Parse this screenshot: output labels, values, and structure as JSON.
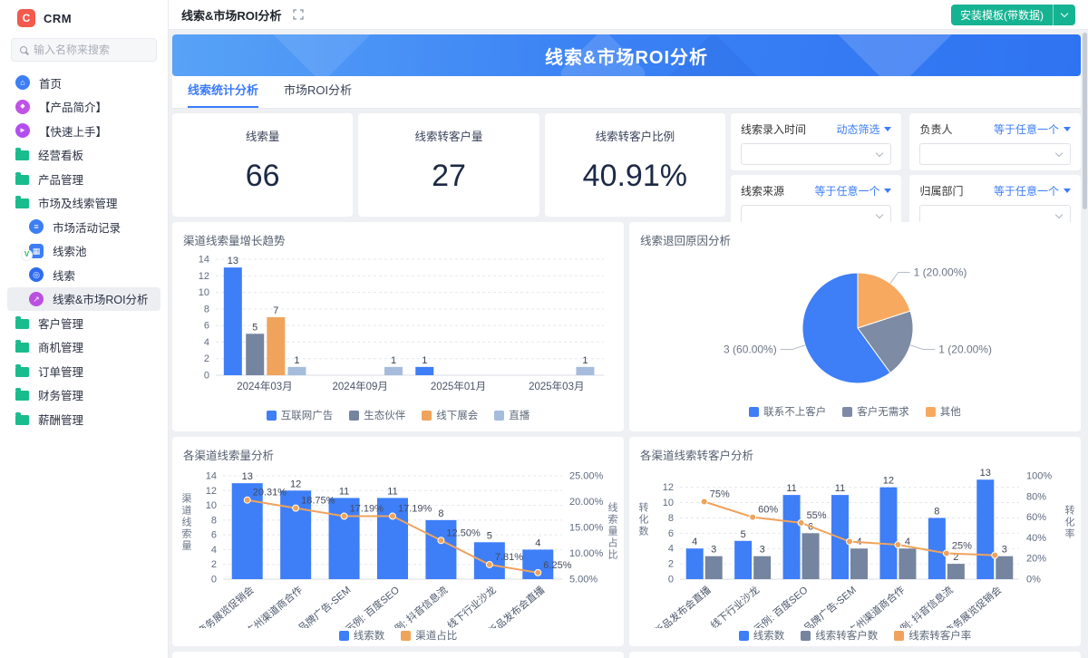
{
  "app": {
    "logo_text": "CRM",
    "search_placeholder": "输入名称来搜索"
  },
  "sidebar": {
    "items": [
      {
        "name": "home",
        "label": "首页",
        "icon": "home-icon",
        "level": 0
      },
      {
        "name": "product-intro",
        "label": "【产品简介】",
        "icon": "tag-icon",
        "level": 0
      },
      {
        "name": "quick-start",
        "label": "【快速上手】",
        "icon": "plane-icon",
        "level": 0
      },
      {
        "name": "business-board",
        "label": "经营看板",
        "icon": "folder-icon",
        "level": 0
      },
      {
        "name": "product-mgmt",
        "label": "产品管理",
        "icon": "folder-icon",
        "level": 0
      },
      {
        "name": "market-lead-mgmt",
        "label": "市场及线索管理",
        "icon": "folder-icon",
        "level": 0
      },
      {
        "name": "market-activity",
        "label": "市场活动记录",
        "icon": "doc-icon",
        "level": 1
      },
      {
        "name": "lead-pool",
        "label": "线索池",
        "icon": "pool-icon",
        "level": 1
      },
      {
        "name": "leads",
        "label": "线索",
        "icon": "lead-icon",
        "level": 1
      },
      {
        "name": "lead-roi",
        "label": "线索&市场ROI分析",
        "icon": "roi-icon",
        "level": 1,
        "active": true
      },
      {
        "name": "customer-mgmt",
        "label": "客户管理",
        "icon": "folder-icon",
        "level": 0
      },
      {
        "name": "opportunity-mgmt",
        "label": "商机管理",
        "icon": "folder-icon",
        "level": 0
      },
      {
        "name": "order-mgmt",
        "label": "订单管理",
        "icon": "folder-icon",
        "level": 0
      },
      {
        "name": "finance-mgmt",
        "label": "财务管理",
        "icon": "folder-icon",
        "level": 0
      },
      {
        "name": "salary-mgmt",
        "label": "薪酬管理",
        "icon": "folder-icon",
        "level": 0
      }
    ]
  },
  "topbar": {
    "title": "线索&市场ROI分析",
    "install_button": "安装模板(带数据)"
  },
  "banner": {
    "title": "线索&市场ROI分析"
  },
  "tabs": [
    {
      "label": "线索统计分析",
      "active": true
    },
    {
      "label": "市场ROI分析",
      "active": false
    }
  ],
  "kpis": [
    {
      "label": "线索量",
      "value": "66"
    },
    {
      "label": "线索转客户量",
      "value": "27"
    },
    {
      "label": "线索转客户比例",
      "value": "40.91%"
    }
  ],
  "filters": [
    {
      "label": "线索录入时间",
      "op": "动态筛选"
    },
    {
      "label": "负责人",
      "op": "等于任意一个"
    },
    {
      "label": "线索来源",
      "op": "等于任意一个"
    },
    {
      "label": "归属部门",
      "op": "等于任意一个"
    }
  ],
  "colors": {
    "accent_blue": "#3E7EF7",
    "slate": "#75849F",
    "light_slate": "#A6BCDC",
    "orange": "#F0A35C",
    "pie_gray": "#7D8BA5",
    "button_green": "#16B392"
  },
  "chart_data": [
    {
      "id": "growth",
      "type": "bar",
      "title": "渠道线索量增长趋势",
      "ylim": [
        0,
        14
      ],
      "yticks": [
        0,
        2,
        4,
        6,
        8,
        10,
        12,
        14
      ],
      "series": [
        {
          "name": "互联网广告",
          "color": "#3E7EF7"
        },
        {
          "name": "生态伙伴",
          "color": "#75849F"
        },
        {
          "name": "线下展会",
          "color": "#F0A35C"
        },
        {
          "name": "直播",
          "color": "#A6BCDC"
        }
      ],
      "bars": [
        {
          "series": 0,
          "value": 13,
          "x": 0.044
        },
        {
          "series": 1,
          "value": 5,
          "x": 0.101
        },
        {
          "series": 2,
          "value": 7,
          "x": 0.155
        },
        {
          "series": 3,
          "value": 1,
          "x": 0.209
        },
        {
          "series": 3,
          "value": 1,
          "x": 0.458
        },
        {
          "series": 0,
          "value": 1,
          "x": 0.538
        },
        {
          "series": 3,
          "value": 1,
          "x": 0.952
        }
      ],
      "x_ticks": [
        {
          "label": "2024年03月",
          "x": 0.126
        },
        {
          "label": "2024年09月",
          "x": 0.372
        },
        {
          "label": "2025年01月",
          "x": 0.625
        },
        {
          "label": "2025年03月",
          "x": 0.878
        }
      ]
    },
    {
      "id": "return-reason",
      "type": "pie",
      "title": "线索退回原因分析",
      "slices": [
        {
          "name": "联系不上客户",
          "value": 3,
          "label": "3 (60.00%)",
          "color": "#3E7EF7"
        },
        {
          "name": "客户无需求",
          "value": 1,
          "label": "1 (20.00%)",
          "color": "#7D8BA5"
        },
        {
          "name": "其他",
          "value": 1,
          "label": "1 (20.00%)",
          "color": "#F6A95F"
        }
      ]
    },
    {
      "id": "channel-leads",
      "type": "combo",
      "title": "各渠道线索量分析",
      "categories": [
        "商务展览促销会",
        "广州渠道商合作",
        "品牌广告-SEM",
        "示例: 百度SEO",
        "示例: 抖音信息流",
        "线下行业沙龙",
        "新品发布会直播"
      ],
      "left_axis": {
        "name": "渠道线索量",
        "max": 14,
        "ticks": [
          0,
          2,
          4,
          6,
          8,
          10,
          12,
          14
        ]
      },
      "right_axis": {
        "name": "线索量占比",
        "lim": [
          5,
          25
        ],
        "ticks": [
          "5.00%",
          "10.00%",
          "15.00%",
          "20.00%",
          "25.00%"
        ]
      },
      "bar_series": [
        {
          "name": "线索数",
          "color": "#3E7EF7",
          "values": [
            13,
            12,
            11,
            11,
            8,
            5,
            4
          ]
        }
      ],
      "line_series": {
        "name": "渠道占比",
        "color": "#F0A35C",
        "values": [
          20.31,
          18.75,
          17.19,
          17.19,
          12.5,
          7.81,
          6.25
        ],
        "labels": [
          "20.31%",
          "18.75%",
          "17.19%",
          "17.19%",
          "12.50%",
          "7.81%",
          "6.25%"
        ]
      }
    },
    {
      "id": "channel-conversion",
      "type": "combo",
      "title": "各渠道线索转客户分析",
      "categories": [
        "新品发布会直播",
        "线下行业沙龙",
        "示例: 百度SEO",
        "品牌广告-SEM",
        "广州渠道商合作",
        "示例: 抖音信息流",
        "商务展览促销会"
      ],
      "left_axis": {
        "name": "转化数",
        "max": 13.5,
        "ticks": [
          0,
          2,
          4,
          6,
          8,
          10,
          12
        ]
      },
      "right_axis": {
        "name": "转化率",
        "lim": [
          0,
          100
        ],
        "ticks": [
          "0%",
          "20%",
          "40%",
          "60%",
          "80%",
          "100%"
        ]
      },
      "bar_series": [
        {
          "name": "线索数",
          "color": "#3E7EF7",
          "values": [
            4,
            5,
            11,
            11,
            12,
            8,
            13
          ]
        },
        {
          "name": "线索转客户数",
          "color": "#75849F",
          "values": [
            3,
            3,
            6,
            4,
            4,
            2,
            3
          ]
        }
      ],
      "line_series": {
        "name": "线索转客户率",
        "color": "#F0A35C",
        "values": [
          75,
          60,
          54.5,
          36.4,
          33.3,
          25,
          23.1
        ],
        "labels": [
          "75%",
          "60%",
          "55%",
          "",
          "",
          "25%",
          ""
        ]
      }
    }
  ]
}
